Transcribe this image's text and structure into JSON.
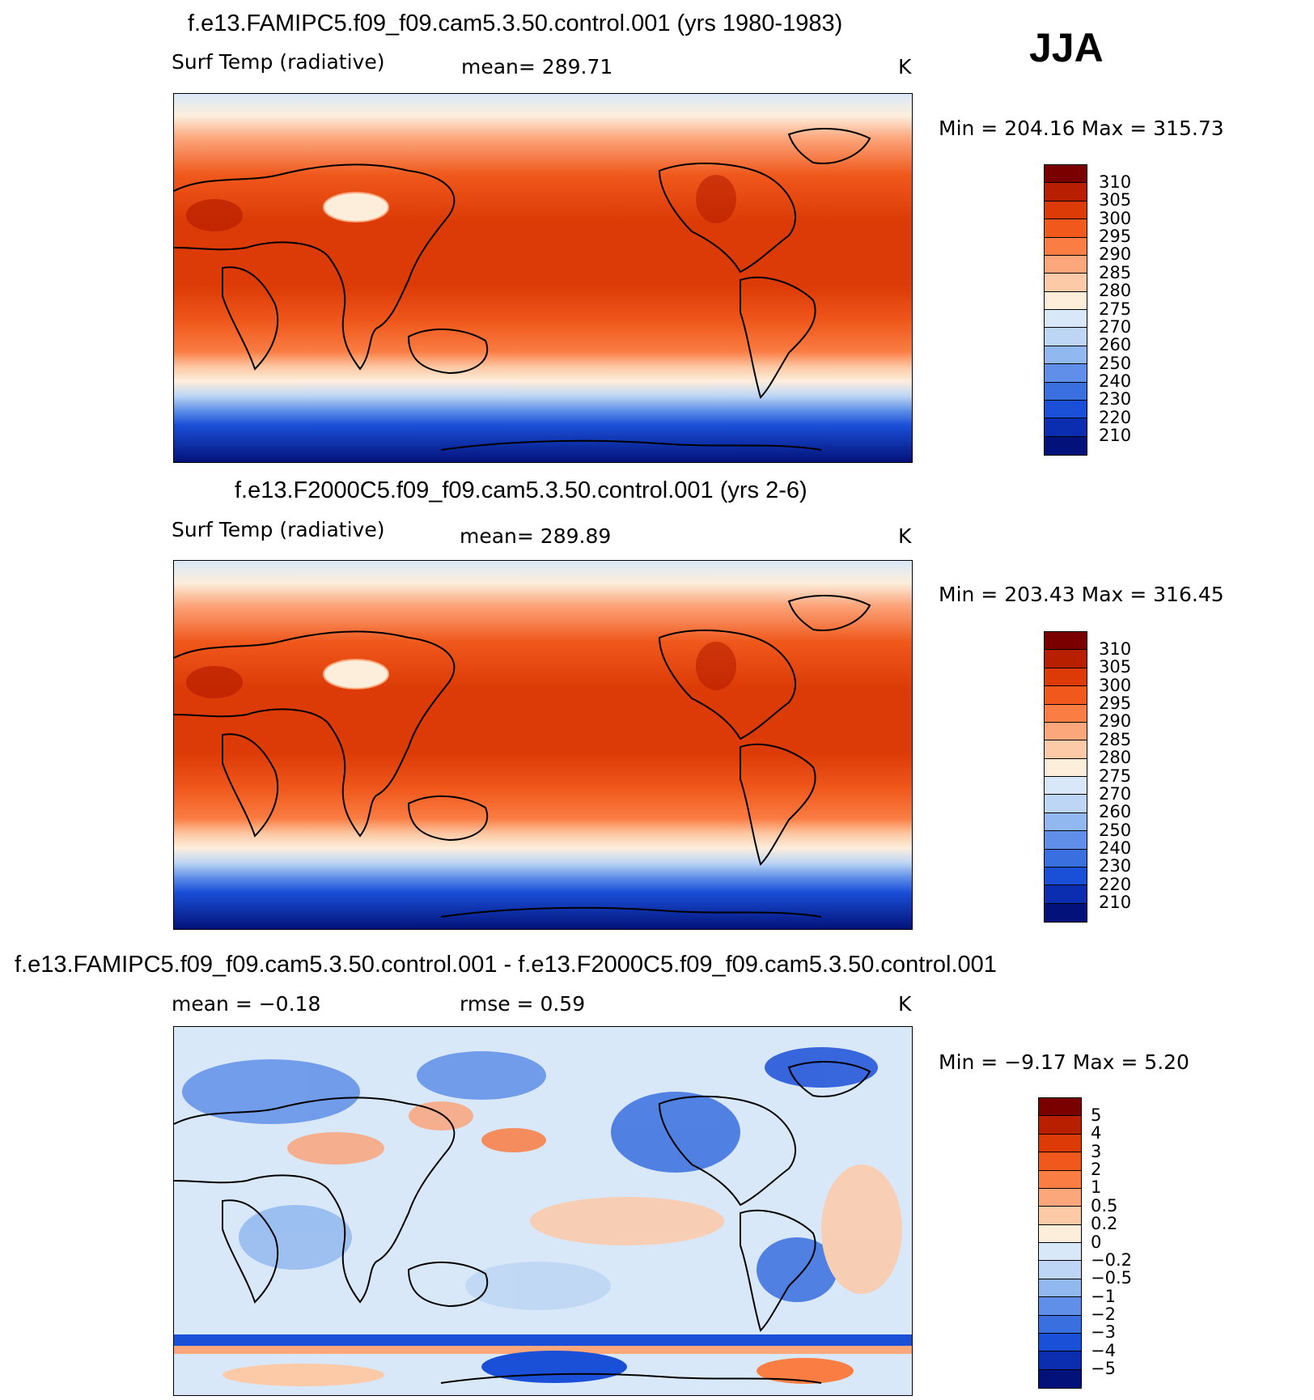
{
  "season": "JJA",
  "units": "K",
  "panels": [
    {
      "title": "f.e13.FAMIPC5.f09_f09.cam5.3.50.control.001 (yrs 1980-1983)",
      "variable": "Surf Temp (radiative)",
      "stat_text": "mean= 289.71",
      "units": "K",
      "minmax_text": "Min = 204.16 Max = 315.73",
      "colorbar": {
        "labels": [
          "310",
          "305",
          "300",
          "295",
          "290",
          "285",
          "280",
          "275",
          "270",
          "260",
          "250",
          "240",
          "230",
          "220",
          "210"
        ],
        "colors": [
          "#7a0000",
          "#b81e00",
          "#dc3a06",
          "#f0581c",
          "#fa7d44",
          "#fca67c",
          "#fdcaa8",
          "#fdeedc",
          "#d9e8f8",
          "#bdd6f5",
          "#92b8f0",
          "#5f8fe8",
          "#3a6fe0",
          "#1a4fd8",
          "#0b2eb0",
          "#03127a"
        ]
      }
    },
    {
      "title": "f.e13.F2000C5.f09_f09.cam5.3.50.control.001 (yrs 2-6)",
      "variable": "Surf Temp (radiative)",
      "stat_text": "mean= 289.89",
      "units": "K",
      "minmax_text": "Min = 203.43 Max = 316.45",
      "colorbar": {
        "labels": [
          "310",
          "305",
          "300",
          "295",
          "290",
          "285",
          "280",
          "275",
          "270",
          "260",
          "250",
          "240",
          "230",
          "220",
          "210"
        ],
        "colors": [
          "#7a0000",
          "#b81e00",
          "#dc3a06",
          "#f0581c",
          "#fa7d44",
          "#fca67c",
          "#fdcaa8",
          "#fdeedc",
          "#d9e8f8",
          "#bdd6f5",
          "#92b8f0",
          "#5f8fe8",
          "#3a6fe0",
          "#1a4fd8",
          "#0b2eb0",
          "#03127a"
        ]
      }
    },
    {
      "title": "f.e13.FAMIPC5.f09_f09.cam5.3.50.control.001 - f.e13.F2000C5.f09_f09.cam5.3.50.control.001",
      "stat_mean": "mean = −0.18",
      "stat_rmse": "rmse = 0.59",
      "units": "K",
      "minmax_text": "Min = −9.17 Max = 5.20",
      "colorbar": {
        "labels": [
          "5",
          "4",
          "3",
          "2",
          "1",
          "0.5",
          "0.2",
          "0",
          "−0.2",
          "−0.5",
          "−1",
          "−2",
          "−3",
          "−4",
          "−5"
        ],
        "colors": [
          "#7a0000",
          "#b81e00",
          "#dc3a06",
          "#f0581c",
          "#fa7d44",
          "#fca67c",
          "#fdcaa8",
          "#fdeedc",
          "#d9e8f8",
          "#bdd6f5",
          "#92b8f0",
          "#5f8fe8",
          "#3a6fe0",
          "#1a4fd8",
          "#0b2eb0",
          "#03127a"
        ]
      }
    }
  ],
  "palette": {
    "sea_bg": "#f0581c",
    "tropics": "#dc3a06",
    "land_outline": "#000000"
  }
}
